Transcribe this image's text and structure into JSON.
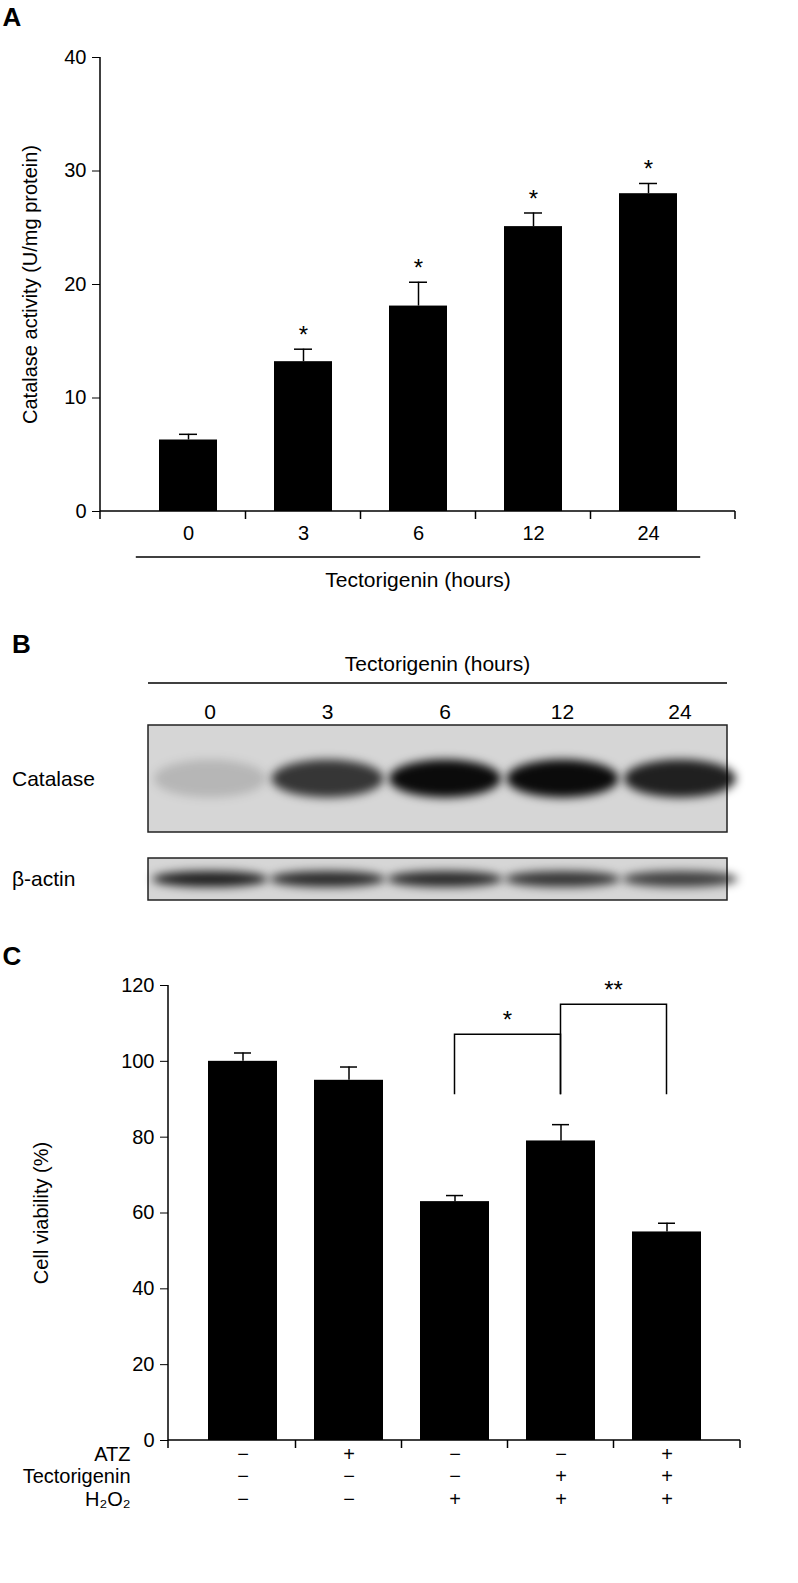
{
  "chart_data": [
    {
      "type": "bar",
      "title": "A",
      "x_label": "Tectorigenin (hours)",
      "y_label": "Catalase activity (U/mg protein)",
      "categories": [
        "0",
        "3",
        "6",
        "12",
        "24"
      ],
      "values": [
        6.3,
        13.2,
        18.1,
        25.1,
        28.0
      ],
      "errors": [
        0.5,
        1.1,
        2.1,
        1.2,
        0.9
      ],
      "annotations": [
        null,
        "*",
        "*",
        "*",
        "*"
      ],
      "color": "#000000",
      "ylim": [
        0,
        40
      ],
      "yticks": [
        0,
        10,
        20,
        30,
        40
      ]
    },
    {
      "type": "bar",
      "title": "C",
      "y_label": "Cell viability (%)",
      "categories": [
        null,
        null,
        null,
        null,
        null
      ],
      "values": [
        100,
        95,
        63,
        79,
        55
      ],
      "errors": [
        2.2,
        3.5,
        1.6,
        4.3,
        2.3
      ],
      "conditions": [
        {
          "name": "ATZ",
          "values": [
            "−",
            "+",
            "−",
            "−",
            "+"
          ]
        },
        {
          "name": "Tectorigenin",
          "values": [
            "−",
            "−",
            "−",
            "+",
            "+"
          ]
        },
        {
          "name": "H₂O₂",
          "values": [
            "−",
            "−",
            "+",
            "+",
            "+"
          ]
        }
      ],
      "comparisons": [
        {
          "from": 2,
          "to": 3,
          "text": "*"
        },
        {
          "from": 3,
          "to": 4,
          "text": "**"
        }
      ],
      "color": "#000000",
      "ylim": [
        0,
        120
      ],
      "yticks": [
        0,
        20,
        40,
        60,
        80,
        100,
        120
      ]
    }
  ],
  "blot": {
    "title": "B",
    "header": "Tectorigenin (hours)",
    "lanes": [
      "0",
      "3",
      "6",
      "12",
      "24"
    ],
    "rows": [
      {
        "label": "Catalase",
        "intensity": [
          0.15,
          0.75,
          0.95,
          0.95,
          0.85
        ]
      },
      {
        "label": "β-actin",
        "intensity": [
          0.85,
          0.8,
          0.8,
          0.75,
          0.7
        ]
      }
    ]
  }
}
